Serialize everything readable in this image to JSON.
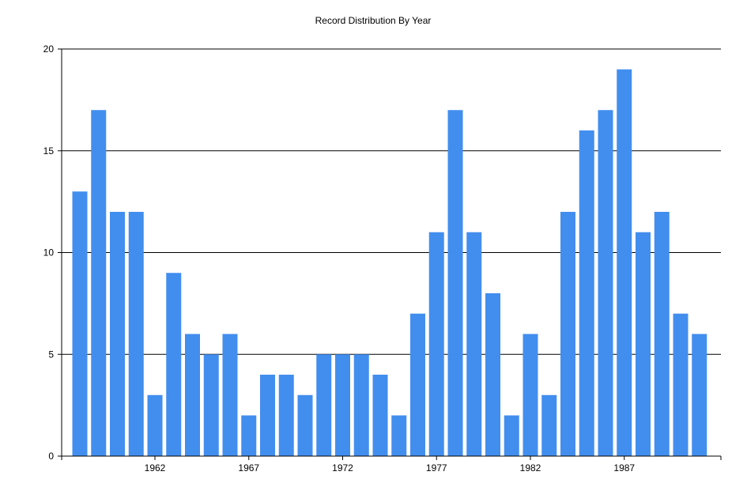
{
  "chart_data": {
    "type": "bar",
    "title": "Record Distribution By Year",
    "xlabel": "",
    "ylabel": "",
    "categories": [
      1958,
      1959,
      1960,
      1961,
      1962,
      1963,
      1964,
      1965,
      1966,
      1967,
      1968,
      1969,
      1970,
      1971,
      1972,
      1973,
      1974,
      1975,
      1976,
      1977,
      1978,
      1979,
      1980,
      1981,
      1982,
      1983,
      1984,
      1985,
      1986,
      1987,
      1988,
      1989,
      1990,
      1991
    ],
    "values": [
      13,
      17,
      12,
      12,
      3,
      9,
      6,
      5,
      6,
      2,
      4,
      4,
      3,
      5,
      5,
      5,
      4,
      2,
      7,
      11,
      17,
      11,
      8,
      2,
      6,
      3,
      12,
      16,
      17,
      19,
      11,
      12,
      7,
      6
    ],
    "ylim": [
      0,
      20
    ],
    "yticks": [
      0,
      5,
      10,
      15,
      20
    ],
    "xticks": [
      1962,
      1967,
      1972,
      1977,
      1982,
      1987
    ],
    "grid": "horizontal",
    "bar_color": "#428eef",
    "axis_color": "#000000"
  }
}
